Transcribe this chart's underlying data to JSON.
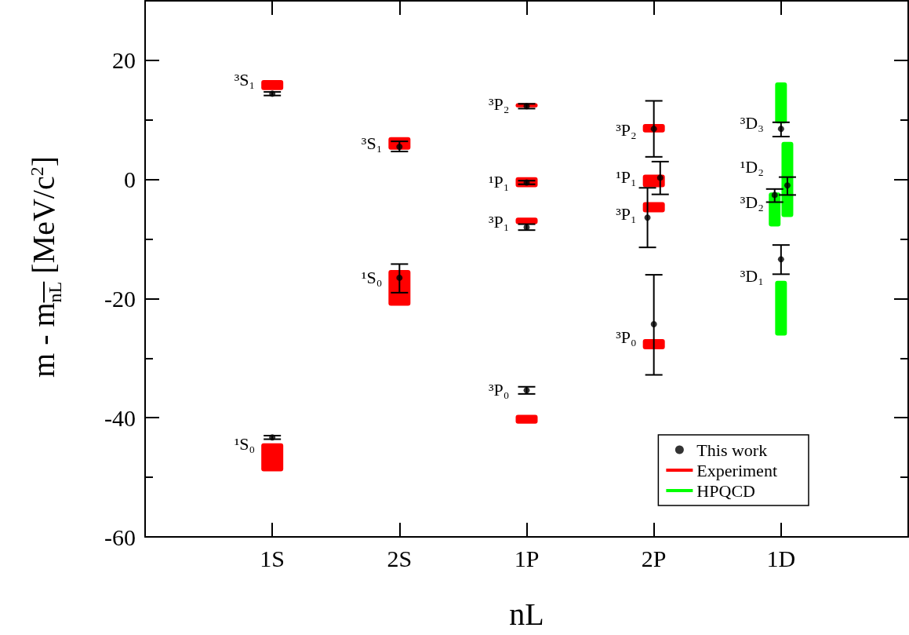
{
  "chart_data": {
    "type": "scatter",
    "xlabel": "nL",
    "ylabel": "m - m$_{nL}$   [MeV/c$^{2}$]",
    "categories": [
      "1S",
      "2S",
      "1P",
      "2P",
      "1D"
    ],
    "ylim": [
      -60,
      30
    ],
    "yticks": [
      -60,
      {
        "value": -50,
        "label": null
      },
      -40,
      {
        "value": -30,
        "label": null
      },
      -20,
      {
        "value": -10,
        "label": null
      },
      0,
      {
        "value": 10,
        "label": null
      },
      20
    ],
    "grid": false,
    "legend": "bottom right",
    "marker": "circle",
    "series": [
      {
        "name": "This work",
        "color": "#000000",
        "x": [
          "1S",
          "1S",
          "2S",
          "2S",
          "1P",
          "1P",
          "1P",
          "1P",
          "2P",
          "2P",
          "2P",
          "2P",
          "1D",
          "1D",
          "1D",
          "1D"
        ],
        "values": [
          14.4,
          -43.3,
          5.5,
          -16.5,
          12.3,
          -0.5,
          -8.0,
          -35.4,
          -6.4,
          8.5,
          -24.3,
          0.3,
          -2.6,
          8.5,
          -13.4,
          -1.0
        ],
        "errors": [
          0.3,
          0.3,
          [
            4.7,
            6.4
          ],
          [
            -19.0,
            -14.2
          ],
          0.4,
          0.3,
          0.5,
          0.6,
          5.0,
          4.7,
          [
            -32.8,
            -16.0
          ],
          [
            -2.5,
            3.0
          ],
          [
            -3.8,
            -1.6
          ],
          [
            7.2,
            9.6
          ],
          [
            -15.9,
            -11.0
          ],
          [
            -2.6,
            0.4
          ]
        ]
      },
      {
        "name": "Experiment",
        "type": "bar",
        "color": "#ff0000",
        "x": [
          "1S",
          "1S",
          "2S",
          "2S",
          "1P",
          "1P",
          "1P",
          "1P",
          "2P",
          "2P",
          "2P",
          "2P"
        ],
        "base": [
          15.0,
          -49.0,
          5.0,
          -21.2,
          12.1,
          -1.3,
          -7.5,
          -41.0,
          7.9,
          -1.3,
          -5.5,
          -28.5
        ],
        "values": [
          1.7,
          4.7,
          2.1,
          6.0,
          0.7,
          1.7,
          1.1,
          1.5,
          1.4,
          2.1,
          1.7,
          1.7
        ]
      },
      {
        "name": "HPQCD",
        "type": "bar",
        "color": "#00ff00",
        "x": [
          "1D",
          "1D",
          "1D",
          "1D"
        ],
        "base": [
          -7.9,
          9.4,
          -26.2,
          -6.3
        ],
        "values": [
          5.7,
          6.9,
          9.2,
          12.6
        ]
      }
    ],
    "annotations": [
      {
        "text": "³S₁",
        "x": "1S",
        "y": 16.7
      },
      {
        "text": "¹S₀",
        "x": "1S",
        "y": -44.5
      },
      {
        "text": "³S₁",
        "x": "2S",
        "y": 6.0
      },
      {
        "text": "¹S₀",
        "x": "2S",
        "y": -16.5
      },
      {
        "text": "³P₂",
        "x": "1P",
        "y": 12.6
      },
      {
        "text": "¹P₁",
        "x": "1P",
        "y": -0.5
      },
      {
        "text": "³P₁",
        "x": "1P",
        "y": -7.1
      },
      {
        "text": "³P₀",
        "x": "1P",
        "y": -35.4
      },
      {
        "text": "³P₂",
        "x": "2P",
        "y": 8.3
      },
      {
        "text": "¹P₁",
        "x": "2P",
        "y": 0.3
      },
      {
        "text": "³P₁",
        "x": "2P",
        "y": -5.8
      },
      {
        "text": "³P₀",
        "x": "2P",
        "y": -26.5
      },
      {
        "text": "³D₃",
        "x": "1D",
        "y": 9.4
      },
      {
        "text": "¹D₂",
        "x": "1D",
        "y": 2.1
      },
      {
        "text": "³D₂",
        "x": "1D",
        "y": -3.8
      },
      {
        "text": "³D₁",
        "x": "1D",
        "y": -16.3
      }
    ]
  }
}
